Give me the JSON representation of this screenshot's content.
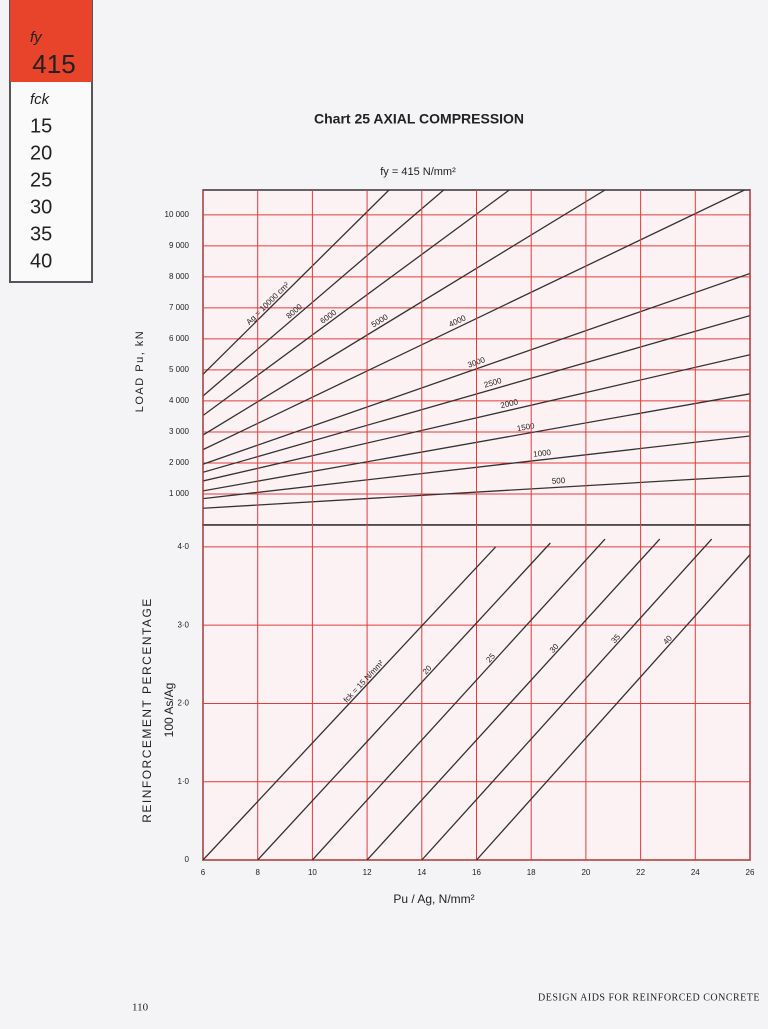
{
  "side_tab": {
    "fy_label": "fy",
    "fy": "415",
    "fck_label": "fck",
    "fck": [
      "15",
      "20",
      "25",
      "30",
      "35",
      "40"
    ]
  },
  "page": {
    "number": "110",
    "footer": "DESIGN AIDS FOR REINFORCED CONCRETE"
  },
  "chart_data": [
    {
      "type": "line",
      "title": "Chart 25 AXIAL COMPRESSION",
      "subtitle": "fy = 415 N/mm²",
      "y_label": "LOAD Pu, kN",
      "color": "#e23b3b",
      "grid": true,
      "xlim": [
        6,
        26
      ],
      "ylim": [
        0,
        10800
      ],
      "yticks": [
        {
          "value": 1000,
          "label": "1 000"
        },
        {
          "value": 2000,
          "label": "2 000"
        },
        {
          "value": 3000,
          "label": "3 000"
        },
        {
          "value": 4000,
          "label": "4 000"
        },
        {
          "value": 5000,
          "label": "5 000"
        },
        {
          "value": 6000,
          "label": "6 000"
        },
        {
          "value": 7000,
          "label": "7 000"
        },
        {
          "value": 8000,
          "label": "8 000"
        },
        {
          "value": 9000,
          "label": "9 000"
        },
        {
          "value": 10000,
          "label": "10 000"
        }
      ],
      "series": [
        {
          "name": "Ag = 10000 cm²",
          "color": "#333333",
          "x": [
            6,
            12.8
          ],
          "values": [
            4860,
            10800
          ]
        },
        {
          "name": "8000",
          "color": "#333333",
          "x": [
            6,
            14.8
          ],
          "values": [
            4160,
            10800
          ]
        },
        {
          "name": "6000",
          "color": "#333333",
          "x": [
            6,
            17.2
          ],
          "values": [
            3530,
            10800
          ]
        },
        {
          "name": "5000",
          "color": "#333333",
          "x": [
            6,
            20.7
          ],
          "values": [
            2900,
            10800
          ]
        },
        {
          "name": "4000",
          "color": "#333333",
          "x": [
            6,
            25.8
          ],
          "values": [
            2430,
            10800
          ]
        },
        {
          "name": "3000",
          "color": "#333333",
          "x": [
            6,
            26
          ],
          "values": [
            1960,
            8110
          ]
        },
        {
          "name": "2500",
          "color": "#333333",
          "x": [
            6,
            26
          ],
          "values": [
            1700,
            6750
          ]
        },
        {
          "name": "2000",
          "color": "#333333",
          "x": [
            6,
            26
          ],
          "values": [
            1420,
            5490
          ]
        },
        {
          "name": "1500",
          "color": "#333333",
          "x": [
            6,
            26
          ],
          "values": [
            1100,
            4230
          ]
        },
        {
          "name": "1000",
          "color": "#333333",
          "x": [
            6,
            26
          ],
          "values": [
            850,
            2870
          ]
        },
        {
          "name": "500",
          "color": "#333333",
          "x": [
            6,
            26
          ],
          "values": [
            540,
            1580
          ]
        }
      ]
    },
    {
      "type": "line",
      "y_label": "REINFORCEMENT PERCENTAGE",
      "y_label_2": "100 As/Ag",
      "x_label": "Pu / Ag, N/mm²",
      "color": "#e23b3b",
      "grid": true,
      "xlim": [
        6,
        26
      ],
      "ylim": [
        0,
        4.28
      ],
      "xticks": [
        6,
        8,
        10,
        12,
        14,
        16,
        18,
        20,
        22,
        24,
        26
      ],
      "yticks": [
        0,
        {
          "value": 1,
          "label": "1·0"
        },
        {
          "value": 2,
          "label": "2·0"
        },
        {
          "value": 3,
          "label": "3·0"
        },
        {
          "value": 4,
          "label": "4·0"
        }
      ],
      "series": [
        {
          "name": "fck = 15 N/mm²",
          "color": "#333333",
          "x": [
            6,
            16.7
          ],
          "values": [
            0,
            4.0
          ]
        },
        {
          "name": "20",
          "color": "#333333",
          "x": [
            8,
            18.7
          ],
          "values": [
            0,
            4.05
          ]
        },
        {
          "name": "25",
          "color": "#333333",
          "x": [
            10,
            20.7
          ],
          "values": [
            0,
            4.1
          ]
        },
        {
          "name": "30",
          "color": "#333333",
          "x": [
            12,
            22.7
          ],
          "values": [
            0,
            4.1
          ]
        },
        {
          "name": "35",
          "color": "#333333",
          "x": [
            14,
            24.6
          ],
          "values": [
            0,
            4.1
          ]
        },
        {
          "name": "40",
          "color": "#333333",
          "x": [
            16,
            26
          ],
          "values": [
            0,
            3.9
          ]
        }
      ]
    }
  ]
}
